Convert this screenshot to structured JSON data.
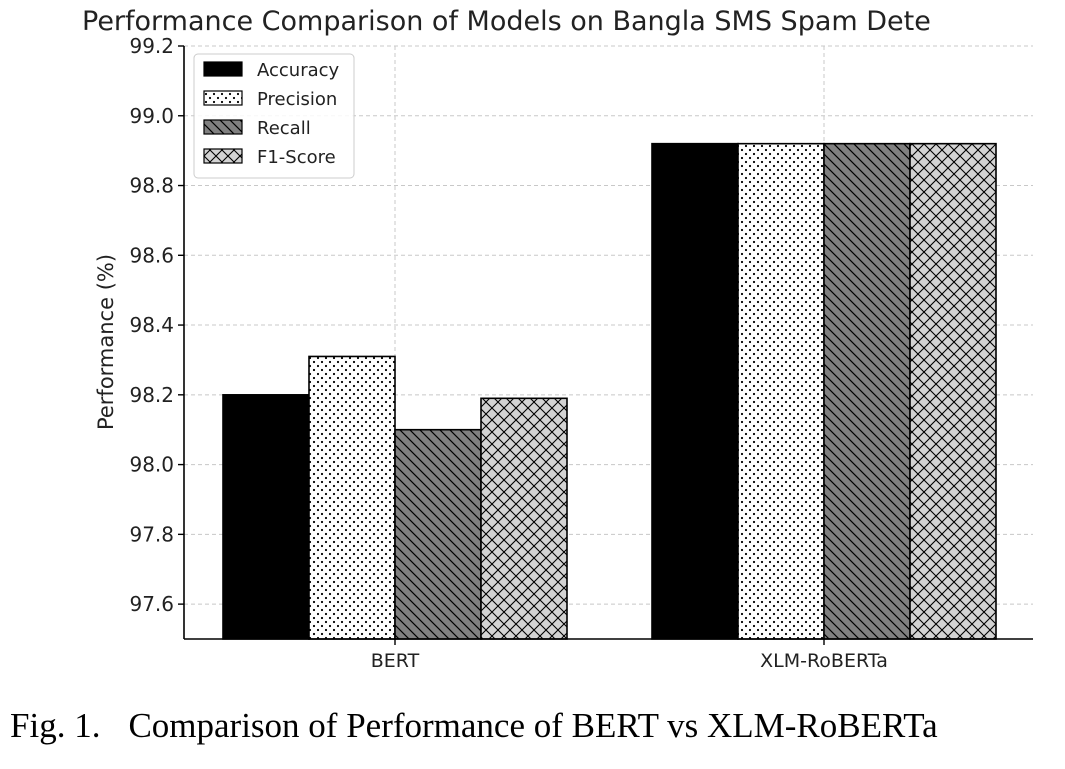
{
  "chart_data": {
    "type": "bar",
    "title": "Performance Comparison of Models on Bangla SMS Spam Dete",
    "xlabel": "",
    "ylabel": "Performance (%)",
    "categories": [
      "BERT",
      "XLM-RoBERTa"
    ],
    "series": [
      {
        "name": "Accuracy",
        "values": [
          98.2,
          98.92
        ],
        "pattern": "solid",
        "color": "#000000"
      },
      {
        "name": "Precision",
        "values": [
          98.31,
          98.92
        ],
        "pattern": "dots",
        "color": "#ffffff"
      },
      {
        "name": "Recall",
        "values": [
          98.1,
          98.92
        ],
        "pattern": "diagonal",
        "color": "#808080"
      },
      {
        "name": "F1-Score",
        "values": [
          98.19,
          98.92
        ],
        "pattern": "crosshatch",
        "color": "#d3d3d3"
      }
    ],
    "ylim": [
      97.5,
      99.2
    ],
    "yticks": [
      97.6,
      97.8,
      98.0,
      98.2,
      98.4,
      98.6,
      98.8,
      99.0,
      99.2
    ],
    "ytick_labels": [
      "97.6",
      "97.8",
      "98.0",
      "98.2",
      "98.4",
      "98.6",
      "98.8",
      "99.0",
      "99.2"
    ],
    "grid": true,
    "legend_position": "top-left"
  },
  "caption": {
    "number": "Fig. 1.",
    "text": "Comparison of Performance of BERT vs XLM-RoBERTa"
  }
}
